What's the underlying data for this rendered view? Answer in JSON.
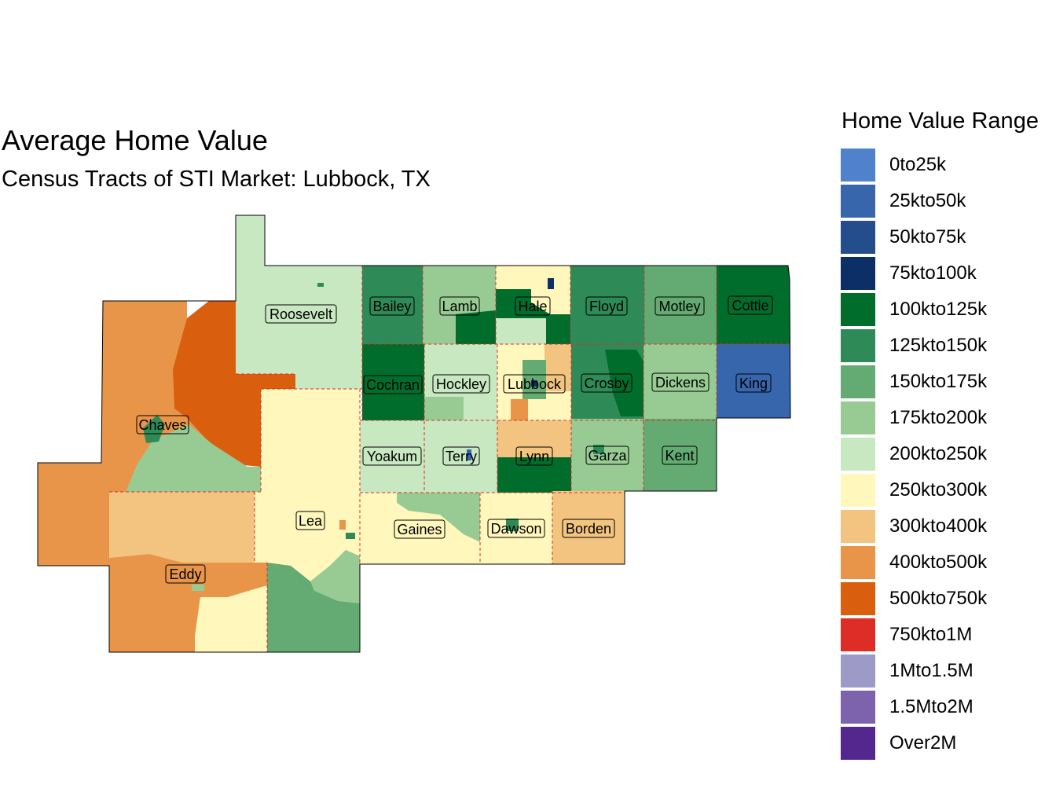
{
  "title": "Average Home Value",
  "subtitle": "Census Tracts of STI Market: Lubbock, TX",
  "legend": {
    "title": "Home Value Range",
    "items": [
      {
        "label": "0to25k",
        "color": "#5082cc"
      },
      {
        "label": "25kto50k",
        "color": "#3766ac"
      },
      {
        "label": "50kto75k",
        "color": "#234d8b"
      },
      {
        "label": "75kto100k",
        "color": "#0c2f68"
      },
      {
        "label": "100kto125k",
        "color": "#006d2c"
      },
      {
        "label": "125kto150k",
        "color": "#2e8b57"
      },
      {
        "label": "150kto175k",
        "color": "#63ab72"
      },
      {
        "label": "175kto200k",
        "color": "#98cb94"
      },
      {
        "label": "200kto250k",
        "color": "#c8e8c2"
      },
      {
        "label": "250kto300k",
        "color": "#fff7bc"
      },
      {
        "label": "300kto400k",
        "color": "#f2c480"
      },
      {
        "label": "400kto500k",
        "color": "#e8954a"
      },
      {
        "label": "500kto750k",
        "color": "#d95f0e"
      },
      {
        "label": "750kto1M",
        "color": "#de2d26"
      },
      {
        "label": "1Mto1.5M",
        "color": "#9e9ac8"
      },
      {
        "label": "1.5Mto2M",
        "color": "#7d62ad"
      },
      {
        "label": "Over2M",
        "color": "#54278f"
      }
    ]
  },
  "counties": {
    "roosevelt": "Roosevelt",
    "chaves": "Chaves",
    "eddy": "Eddy",
    "lea": "Lea",
    "bailey": "Bailey",
    "lamb": "Lamb",
    "hale": "Hale",
    "floyd": "Floyd",
    "motley": "Motley",
    "cottle": "Cottle",
    "cochran": "Cochran",
    "hockley": "Hockley",
    "lubbock": "Lubbock",
    "crosby": "Crosby",
    "dickens": "Dickens",
    "king": "King",
    "yoakum": "Yoakum",
    "terry": "Terry",
    "lynn": "Lynn",
    "garza": "Garza",
    "kent": "Kent",
    "gaines": "Gaines",
    "dawson": "Dawson",
    "borden": "Borden"
  }
}
